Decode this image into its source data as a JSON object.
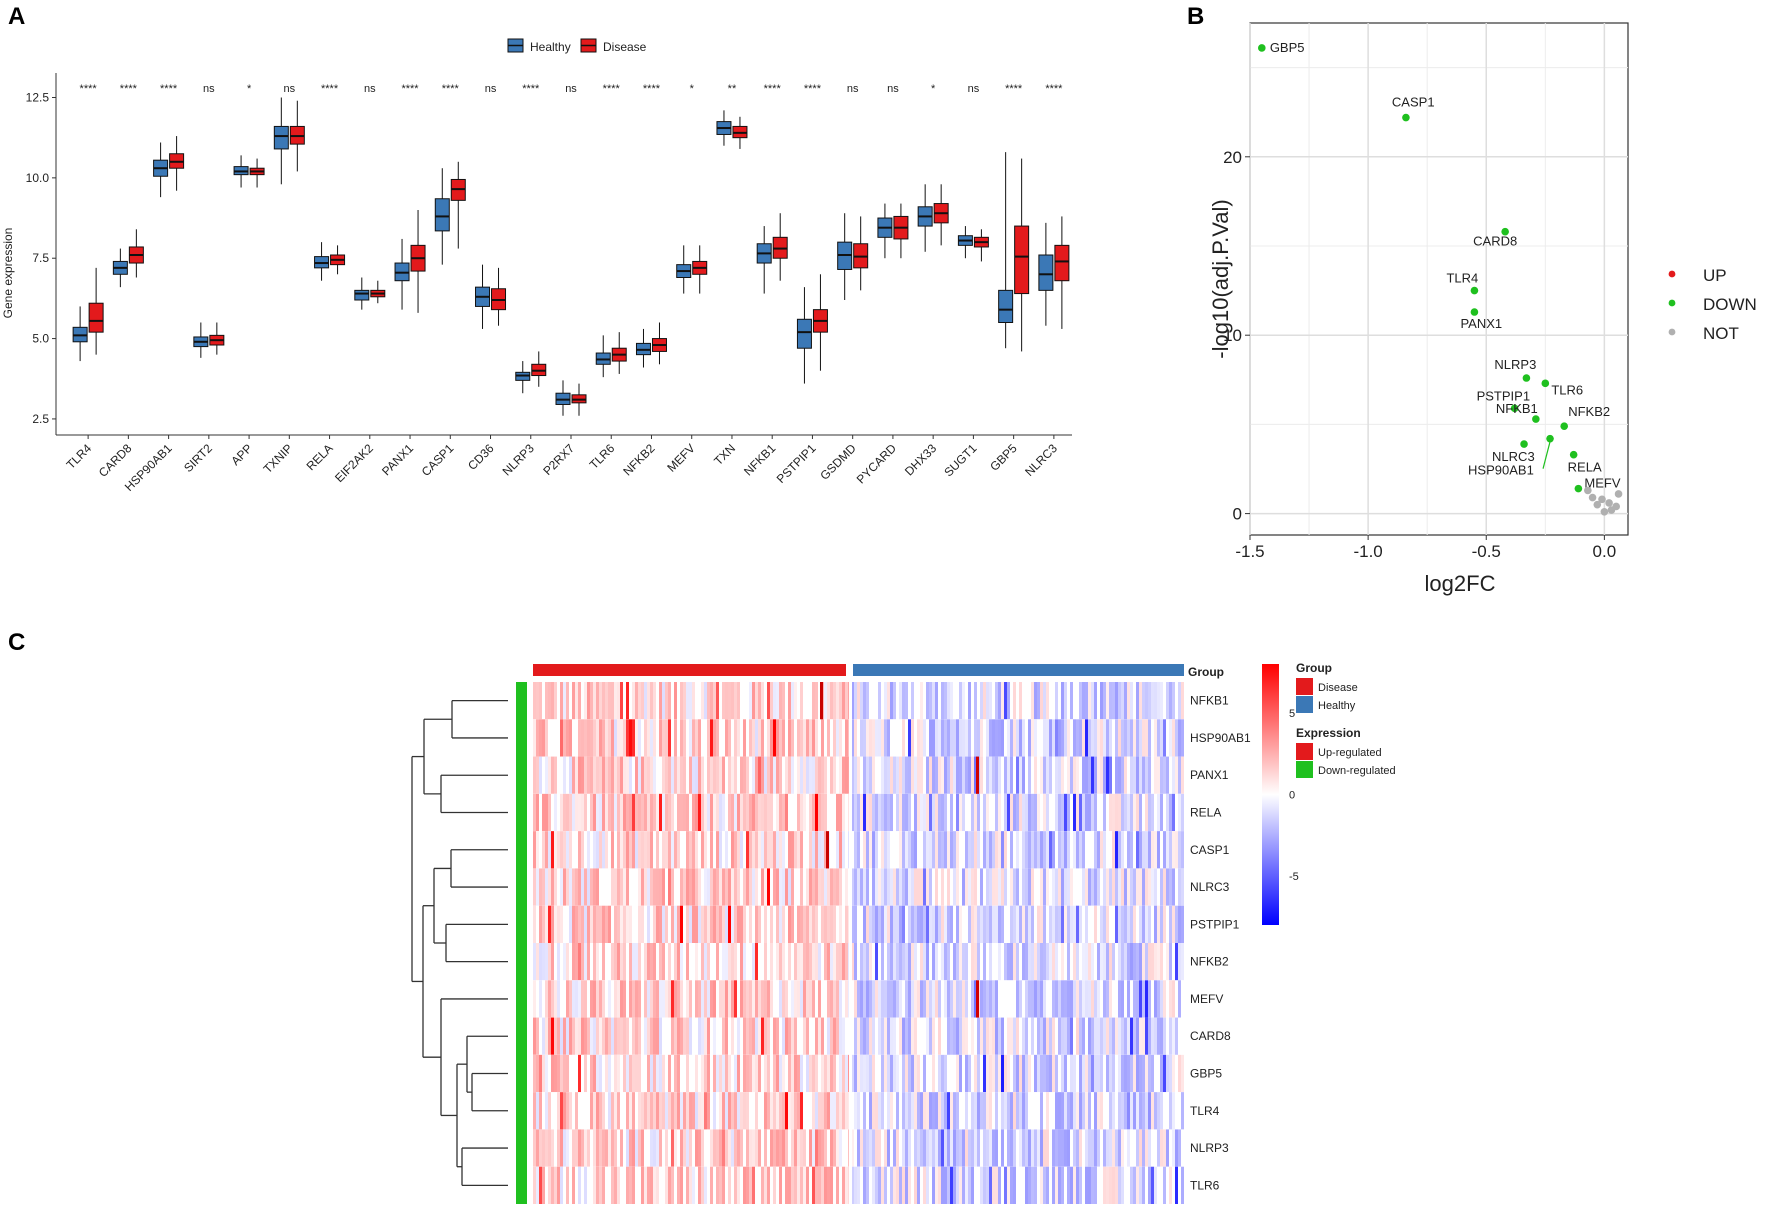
{
  "figure": {
    "panel_labels": [
      "A",
      "B",
      "C"
    ],
    "colors": {
      "healthy": "#3b78b6",
      "disease": "#e31a1c",
      "up": "#e31a1c",
      "down": "#1fc01f",
      "not": "#b0b0b0"
    }
  },
  "chart_data": [
    {
      "type": "boxplot",
      "panel": "A",
      "ylabel": "Gene expression",
      "ylim": [
        2,
        13.2
      ],
      "yticks": [
        "2.5",
        "5.0",
        "7.5",
        "10.0",
        "12.5"
      ],
      "legend": {
        "position": "top",
        "entries": [
          "Healthy",
          "Disease"
        ]
      },
      "categories": [
        "TLR4",
        "CARD8",
        "HSP90AB1",
        "SIRT2",
        "APP",
        "TXNIP",
        "RELA",
        "EIF2AK2",
        "PANX1",
        "CASP1",
        "CD36",
        "NLRP3",
        "P2RX7",
        "TLR6",
        "NFKB2",
        "MEFV",
        "TXN",
        "NFKB1",
        "PSTPIP1",
        "GSDMD",
        "PYCARD",
        "DHX33",
        "SUGT1",
        "GBP5",
        "NLRC3"
      ],
      "significance": [
        "****",
        "****",
        "****",
        "ns",
        "*",
        "ns",
        "****",
        "ns",
        "****",
        "****",
        "ns",
        "****",
        "ns",
        "****",
        "****",
        "*",
        "**",
        "****",
        "****",
        "ns",
        "ns",
        "*",
        "ns",
        "****",
        "****"
      ],
      "series": [
        {
          "name": "Healthy",
          "boxes": [
            [
              4.3,
              4.9,
              5.1,
              5.35,
              6.0
            ],
            [
              6.6,
              7.0,
              7.2,
              7.4,
              7.8
            ],
            [
              9.4,
              10.05,
              10.3,
              10.55,
              11.1
            ],
            [
              4.4,
              4.75,
              4.9,
              5.05,
              5.5
            ],
            [
              9.7,
              10.1,
              10.2,
              10.35,
              10.7
            ],
            [
              9.8,
              10.9,
              11.3,
              11.6,
              12.5
            ],
            [
              6.8,
              7.2,
              7.35,
              7.55,
              8.0
            ],
            [
              5.9,
              6.2,
              6.4,
              6.5,
              6.9
            ],
            [
              5.9,
              6.8,
              7.05,
              7.35,
              8.1
            ],
            [
              7.3,
              8.35,
              8.8,
              9.35,
              10.3
            ],
            [
              5.3,
              6.0,
              6.3,
              6.6,
              7.3
            ],
            [
              3.3,
              3.7,
              3.85,
              3.95,
              4.3
            ],
            [
              2.6,
              2.95,
              3.1,
              3.3,
              3.7
            ],
            [
              3.8,
              4.2,
              4.35,
              4.55,
              5.1
            ],
            [
              4.1,
              4.5,
              4.65,
              4.85,
              5.3
            ],
            [
              6.4,
              6.9,
              7.1,
              7.3,
              7.9
            ],
            [
              11.0,
              11.35,
              11.55,
              11.75,
              12.1
            ],
            [
              6.4,
              7.35,
              7.65,
              7.95,
              8.5
            ],
            [
              3.6,
              4.7,
              5.2,
              5.6,
              6.6
            ],
            [
              6.2,
              7.15,
              7.6,
              8.0,
              8.9
            ],
            [
              7.5,
              8.15,
              8.45,
              8.75,
              9.2
            ],
            [
              7.7,
              8.5,
              8.8,
              9.1,
              9.8
            ],
            [
              7.5,
              7.9,
              8.05,
              8.2,
              8.5
            ],
            [
              4.7,
              5.5,
              5.9,
              6.5,
              10.8
            ],
            [
              5.4,
              6.5,
              7.0,
              7.6,
              8.6
            ]
          ]
        },
        {
          "name": "Disease",
          "boxes": [
            [
              4.5,
              5.2,
              5.55,
              6.1,
              7.2
            ],
            [
              6.9,
              7.35,
              7.6,
              7.85,
              8.4
            ],
            [
              9.6,
              10.3,
              10.5,
              10.75,
              11.3
            ],
            [
              4.5,
              4.8,
              4.95,
              5.1,
              5.5
            ],
            [
              9.7,
              10.1,
              10.2,
              10.3,
              10.6
            ],
            [
              10.2,
              11.05,
              11.3,
              11.6,
              12.4
            ],
            [
              7.0,
              7.3,
              7.45,
              7.6,
              7.9
            ],
            [
              6.1,
              6.3,
              6.4,
              6.5,
              6.8
            ],
            [
              5.8,
              7.1,
              7.5,
              7.9,
              9.0
            ],
            [
              7.8,
              9.3,
              9.65,
              9.95,
              10.5
            ],
            [
              5.4,
              5.9,
              6.2,
              6.55,
              7.2
            ],
            [
              3.5,
              3.85,
              4.0,
              4.2,
              4.6
            ],
            [
              2.6,
              3.0,
              3.1,
              3.25,
              3.6
            ],
            [
              3.9,
              4.3,
              4.5,
              4.7,
              5.2
            ],
            [
              4.2,
              4.6,
              4.8,
              5.0,
              5.5
            ],
            [
              6.4,
              7.0,
              7.2,
              7.4,
              7.9
            ],
            [
              10.9,
              11.25,
              11.4,
              11.6,
              11.9
            ],
            [
              6.8,
              7.5,
              7.8,
              8.15,
              8.9
            ],
            [
              4.0,
              5.2,
              5.55,
              5.9,
              7.0
            ],
            [
              6.5,
              7.2,
              7.55,
              7.95,
              8.8
            ],
            [
              7.5,
              8.1,
              8.45,
              8.8,
              9.2
            ],
            [
              7.9,
              8.6,
              8.9,
              9.2,
              9.8
            ],
            [
              7.4,
              7.85,
              8.0,
              8.15,
              8.4
            ],
            [
              4.6,
              6.4,
              7.55,
              8.5,
              10.6
            ],
            [
              5.3,
              6.8,
              7.4,
              7.9,
              8.8
            ]
          ]
        }
      ]
    },
    {
      "type": "scatter",
      "panel": "B",
      "xlabel": "log2FC",
      "ylabel": "-log10(adj.P.Val)",
      "xlim": [
        -1.5,
        0.1
      ],
      "ylim": [
        -1.2,
        27.5
      ],
      "xticks": [
        "-1.5",
        "-1.0",
        "-0.5",
        "0.0"
      ],
      "yticks": [
        "0",
        "10",
        "20"
      ],
      "legend": {
        "position": "right",
        "entries": [
          "UP",
          "DOWN",
          "NOT"
        ]
      },
      "points": [
        {
          "label": "GBP5",
          "x": -1.45,
          "y": 26.1,
          "group": "DOWN"
        },
        {
          "label": "CASP1",
          "x": -0.84,
          "y": 22.2,
          "group": "DOWN"
        },
        {
          "label": "CARD8",
          "x": -0.42,
          "y": 15.8,
          "group": "DOWN"
        },
        {
          "label": "TLR4",
          "x": -0.55,
          "y": 12.5,
          "group": "DOWN"
        },
        {
          "label": "PANX1",
          "x": -0.55,
          "y": 11.3,
          "group": "DOWN"
        },
        {
          "label": "NLRP3",
          "x": -0.33,
          "y": 7.6,
          "group": "DOWN"
        },
        {
          "label": "TLR6",
          "x": -0.25,
          "y": 7.3,
          "group": "DOWN"
        },
        {
          "label": "PSTPIP1",
          "x": -0.38,
          "y": 5.9,
          "group": "DOWN"
        },
        {
          "label": "NFKB2",
          "x": -0.17,
          "y": 4.9,
          "group": "DOWN"
        },
        {
          "label": "NFKB1",
          "x": -0.29,
          "y": 5.3,
          "group": "DOWN"
        },
        {
          "label": "NLRC3",
          "x": -0.34,
          "y": 3.9,
          "group": "DOWN"
        },
        {
          "label": "HSP90AB1",
          "x": -0.23,
          "y": 4.2,
          "group": "DOWN"
        },
        {
          "label": "RELA",
          "x": -0.13,
          "y": 3.3,
          "group": "DOWN"
        },
        {
          "label": "MEFV",
          "x": -0.11,
          "y": 1.4,
          "group": "DOWN"
        },
        {
          "label": "",
          "x": 0.0,
          "y": 0.1,
          "group": "NOT"
        },
        {
          "label": "",
          "x": 0.03,
          "y": 0.2,
          "group": "NOT"
        },
        {
          "label": "",
          "x": -0.03,
          "y": 0.5,
          "group": "NOT"
        },
        {
          "label": "",
          "x": 0.05,
          "y": 0.4,
          "group": "NOT"
        },
        {
          "label": "",
          "x": -0.01,
          "y": 0.8,
          "group": "NOT"
        },
        {
          "label": "",
          "x": 0.06,
          "y": 1.1,
          "group": "NOT"
        },
        {
          "label": "",
          "x": -0.07,
          "y": 1.3,
          "group": "NOT"
        },
        {
          "label": "",
          "x": 0.02,
          "y": 0.6,
          "group": "NOT"
        },
        {
          "label": "",
          "x": -0.05,
          "y": 0.9,
          "group": "NOT"
        }
      ]
    },
    {
      "type": "heatmap",
      "panel": "C",
      "rows": [
        "NFKB1",
        "HSP90AB1",
        "PANX1",
        "RELA",
        "CASP1",
        "NLRC3",
        "PSTPIP1",
        "NFKB2",
        "MEFV",
        "CARD8",
        "GBP5",
        "TLR4",
        "NLRP3",
        "TLR6"
      ],
      "column_groups": [
        {
          "name": "Disease",
          "fraction": 0.49
        },
        {
          "name": "Healthy",
          "fraction": 0.51
        }
      ],
      "color_scale": {
        "min": -8,
        "max": 8,
        "ticks": [
          "5",
          "0",
          "-5"
        ],
        "low": "#0000ff",
        "mid": "#ffffff",
        "high": "#ff0000"
      },
      "row_annotation": "Down-regulated",
      "legend": {
        "group_title": "Group",
        "group_entries": [
          "Disease",
          "Healthy"
        ],
        "expression_title": "Expression",
        "expression_entries": [
          "Up-regulated",
          "Down-regulated"
        ]
      },
      "group_label": "Group"
    }
  ]
}
